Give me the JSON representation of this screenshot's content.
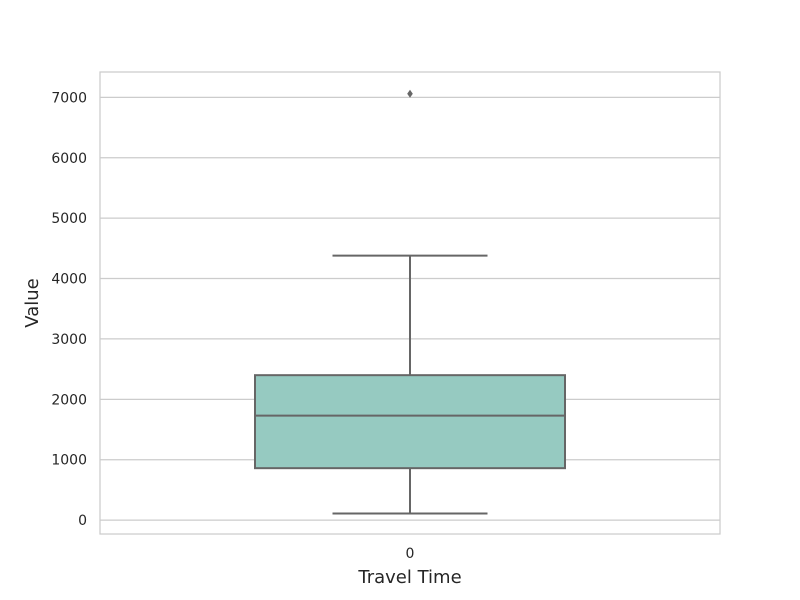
{
  "chart_data": {
    "type": "box",
    "title": "",
    "xlabel": "Travel Time",
    "ylabel": "Value",
    "categories": [
      "0"
    ],
    "ylim": [
      -230,
      7420
    ],
    "yticks": [
      0,
      1000,
      2000,
      3000,
      4000,
      5000,
      6000,
      7000
    ],
    "grid": true,
    "boxes": [
      {
        "category": "0",
        "whisker_low": 110,
        "q1": 860,
        "median": 1730,
        "q3": 2400,
        "whisker_high": 4380,
        "outliers": [
          7060
        ]
      }
    ],
    "colors": {
      "box_fill": "#96cac1",
      "box_edge": "#666666",
      "grid": "#cccccc",
      "frame": "#cccccc"
    }
  }
}
